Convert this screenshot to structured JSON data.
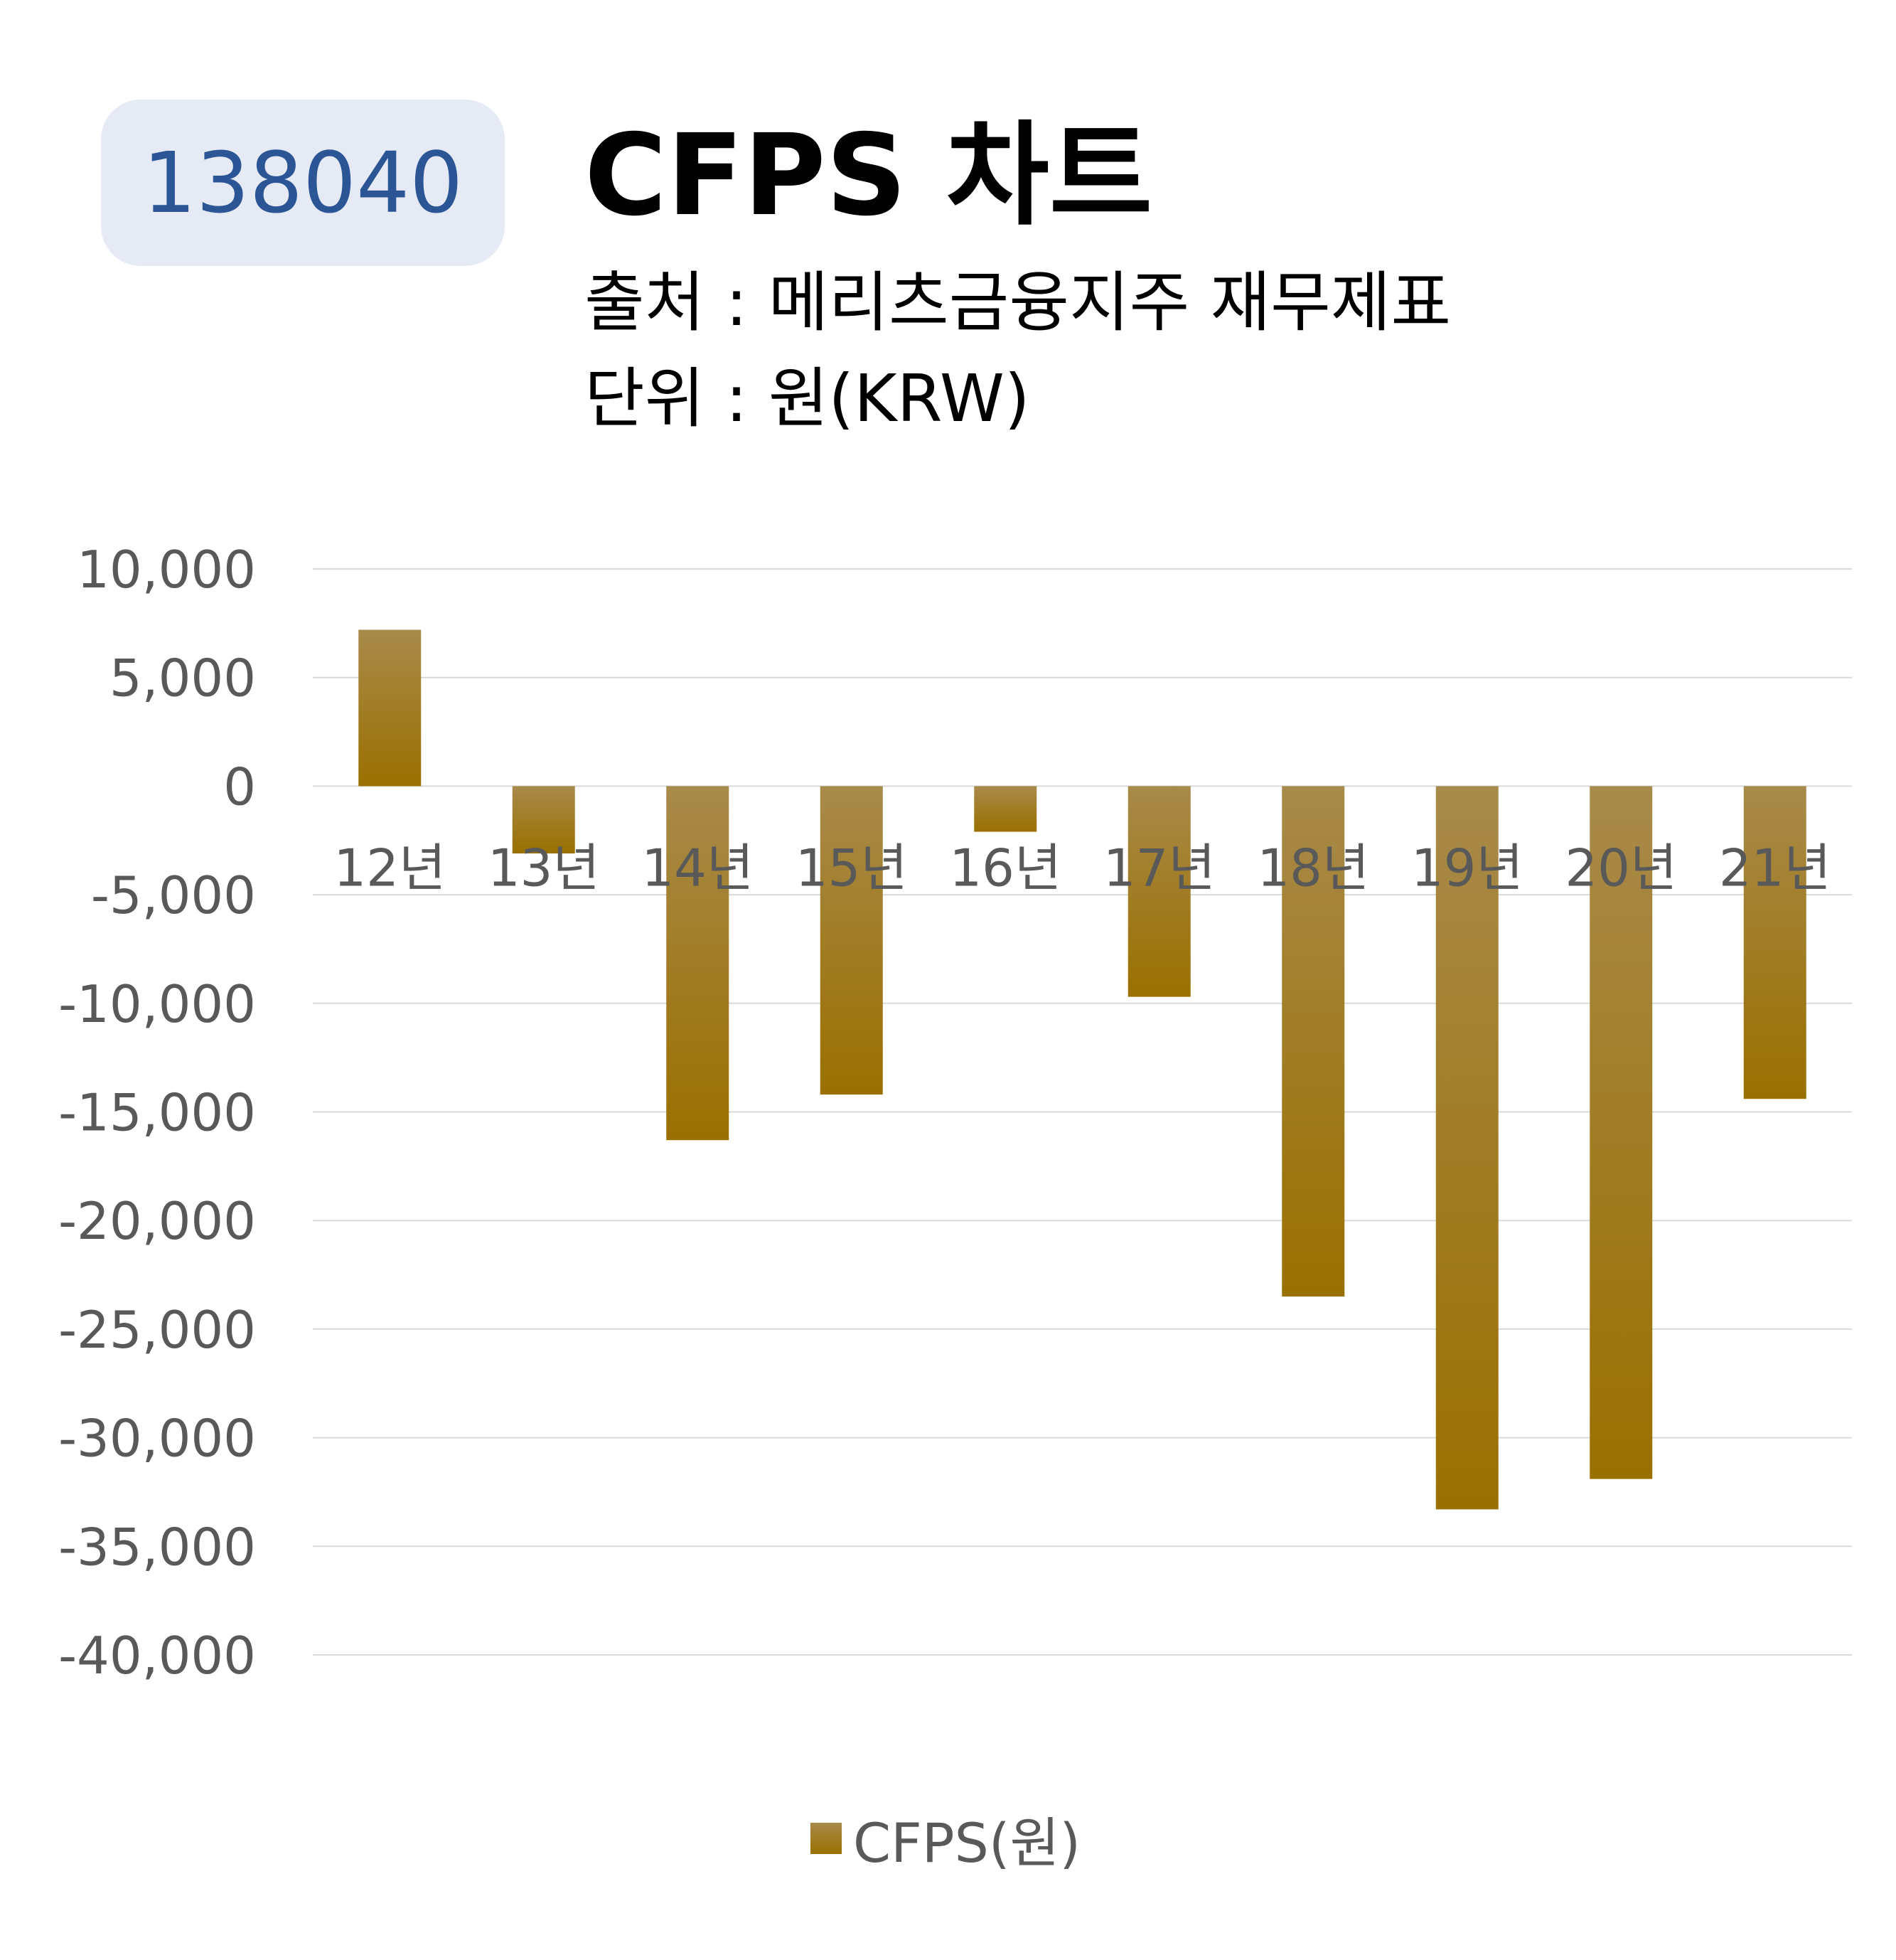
{
  "header": {
    "stock_code": "138040",
    "title": "CFPS 차트",
    "source_line": "출처 : 메리츠금융지주 재무제표",
    "unit_line": "단위 : 원(KRW)"
  },
  "colors": {
    "badge_bg": "#e5eaf5",
    "badge_text": "#2c5596",
    "bar_top": "#a88a4a",
    "bar_bottom": "#9a7000",
    "axis_text": "#595959",
    "gridline": "#d9d9d9"
  },
  "chart_data": {
    "type": "bar",
    "categories": [
      "12년",
      "13년",
      "14년",
      "15년",
      "16년",
      "17년",
      "18년",
      "19년",
      "20년",
      "21년"
    ],
    "series": [
      {
        "name": "CFPS(원)",
        "values": [
          7200,
          -3100,
          -16300,
          -14200,
          -2100,
          -9700,
          -23500,
          -33300,
          -31900,
          -14400
        ]
      }
    ],
    "ylim": [
      -40000,
      10000
    ],
    "yticks": [
      10000,
      5000,
      0,
      -5000,
      -10000,
      -15000,
      -20000,
      -25000,
      -30000,
      -35000,
      -40000
    ],
    "ytick_labels": [
      "10,000",
      "5,000",
      "0",
      "-5,000",
      "-10,000",
      "-15,000",
      "-20,000",
      "-25,000",
      "-30,000",
      "-35,000",
      "-40,000"
    ],
    "grid": true,
    "legend": "bottom"
  }
}
